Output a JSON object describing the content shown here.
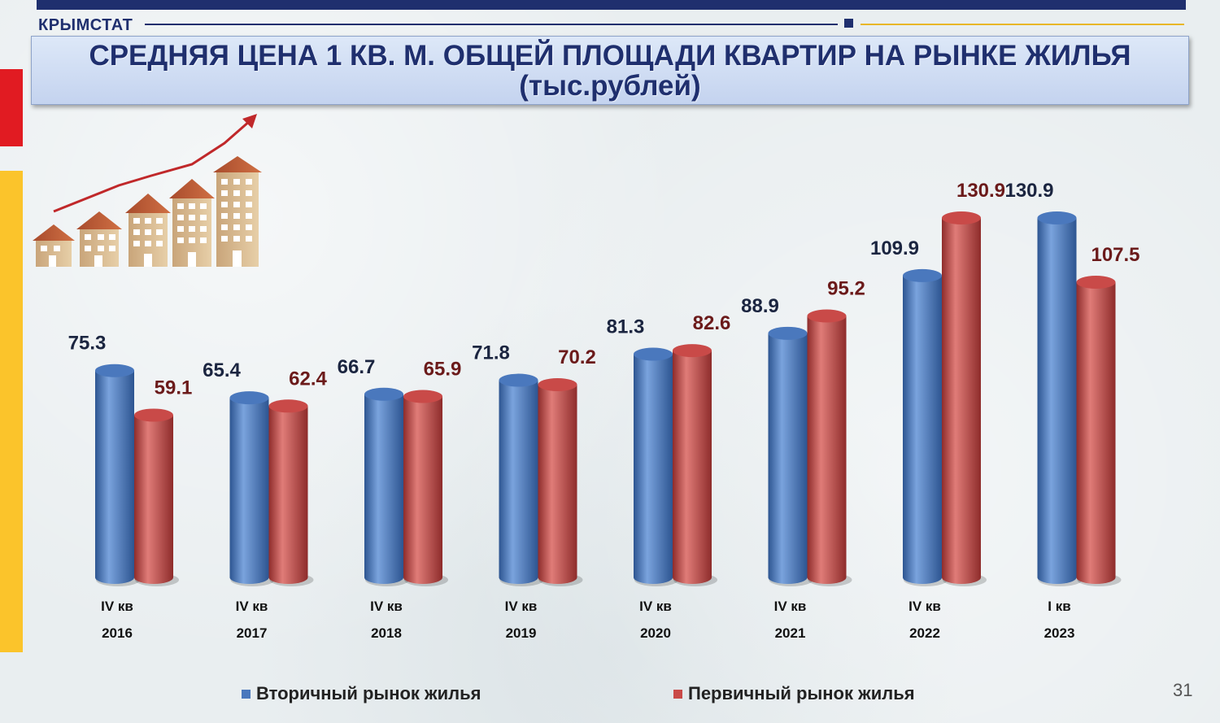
{
  "header": {
    "brand": "КРЫМСТАТ",
    "title": "СРЕДНЯЯ ЦЕНА 1 КВ. М. ОБЩЕЙ ПЛОЩАДИ КВАРТИР НА РЫНКЕ ЖИЛЬЯ (тыс.рублей)"
  },
  "colors": {
    "secondary_market": "#4a78bd",
    "primary_market": "#c94a48",
    "brand_navy": "#1f2f6e",
    "accent_red": "#e11b22",
    "accent_yellow": "#fbc42b"
  },
  "chart_data": {
    "type": "bar",
    "title": "СРЕДНЯЯ ЦЕНА 1 КВ. М. ОБЩЕЙ ПЛОЩАДИ КВАРТИР НА РЫНКЕ ЖИЛЬЯ (тыс.рублей)",
    "categories": [
      {
        "quarter": "IV кв",
        "year": "2016"
      },
      {
        "quarter": "IV кв",
        "year": "2017"
      },
      {
        "quarter": "IV кв",
        "year": "2018"
      },
      {
        "quarter": "IV кв",
        "year": "2019"
      },
      {
        "quarter": "IV кв",
        "year": "2020"
      },
      {
        "quarter": "IV кв",
        "year": "2021"
      },
      {
        "quarter": "IV кв",
        "year": "2022"
      },
      {
        "quarter": "I кв",
        "year": "2023"
      }
    ],
    "series": [
      {
        "name": "Вторичный рынок жилья",
        "values": [
          75.3,
          65.4,
          66.7,
          71.8,
          81.3,
          88.9,
          109.9,
          130.9
        ]
      },
      {
        "name": "Первичный рынок жилья",
        "values": [
          59.1,
          62.4,
          65.9,
          70.2,
          82.6,
          95.2,
          130.9,
          107.5
        ]
      }
    ],
    "ylim": [
      0,
      130.9
    ],
    "grid": false,
    "legend": "bottom",
    "bar_style": "3d-cylinder"
  },
  "legend": {
    "items": [
      "Вторичный рынок жилья",
      "Первичный рынок жилья"
    ]
  },
  "footer": {
    "page_number": "31"
  }
}
